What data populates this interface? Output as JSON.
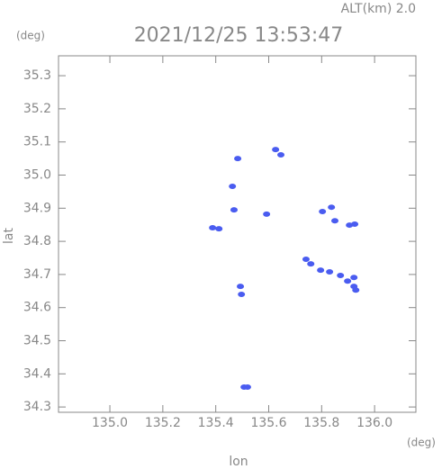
{
  "chart_data": {
    "type": "scatter",
    "title": "2021/12/25 13:53:47",
    "subtitle": "ALT(km)  2.0",
    "x_label": "lon",
    "y_label": "lat",
    "x_unit": "(deg)",
    "y_unit": "(deg)",
    "x": [
      135.483,
      135.626,
      135.646,
      135.463,
      135.469,
      135.388,
      135.412,
      135.592,
      135.803,
      135.837,
      135.85,
      135.905,
      135.925,
      135.741,
      135.759,
      135.796,
      135.83,
      135.871,
      135.898,
      135.922,
      135.922,
      135.929,
      135.493,
      135.497,
      135.507,
      135.52
    ],
    "y": [
      35.05,
      35.077,
      35.061,
      34.966,
      34.895,
      34.841,
      34.838,
      34.882,
      34.89,
      34.903,
      34.862,
      34.849,
      34.852,
      34.746,
      34.732,
      34.713,
      34.708,
      34.697,
      34.68,
      34.691,
      34.664,
      34.653,
      34.664,
      34.64,
      34.36,
      34.36
    ],
    "color": "#4a5cf0",
    "xlim": [
      134.806,
      136.156
    ],
    "ylim": [
      34.284,
      35.36
    ],
    "xticks": [
      {
        "value": 135.0,
        "label": "135.0"
      },
      135.2,
      135.4,
      135.6,
      135.8,
      {
        "value": 136.0,
        "label": "136.0"
      }
    ],
    "yticks": [
      34.3,
      34.4,
      34.5,
      34.6,
      34.7,
      34.8,
      34.9,
      {
        "value": 35.0,
        "label": "35.0"
      },
      35.1,
      35.2,
      35.3
    ]
  }
}
